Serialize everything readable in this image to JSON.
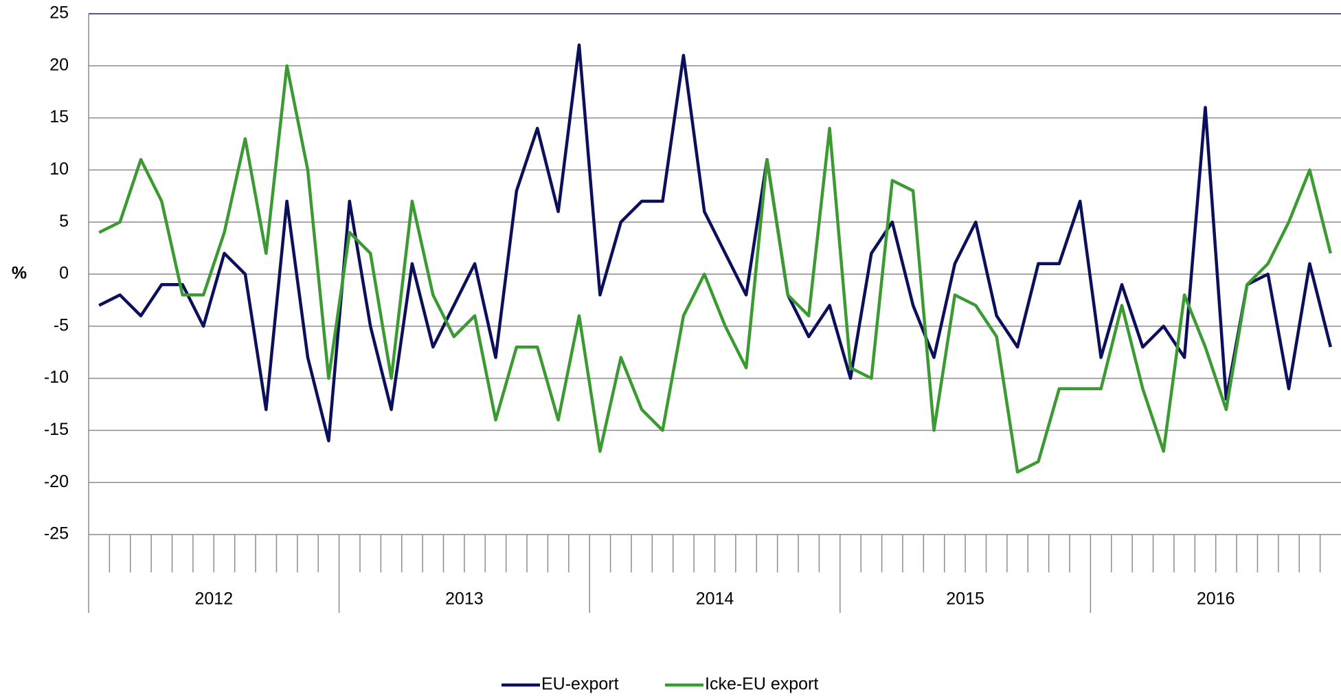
{
  "chart_data": {
    "type": "line",
    "y_label": "%",
    "categories": [
      null,
      null,
      null,
      null,
      null,
      null,
      null,
      null,
      null,
      null,
      null,
      null,
      null,
      null,
      null,
      null,
      null,
      null,
      null,
      null,
      null,
      null,
      null,
      null,
      null,
      null,
      null,
      null,
      null,
      null,
      null,
      null,
      null,
      null,
      null,
      null,
      null,
      null,
      null,
      null,
      null,
      null,
      null,
      null,
      null,
      null,
      null,
      null,
      null,
      null,
      null,
      null,
      null,
      null,
      null,
      null,
      null,
      null,
      null,
      null
    ],
    "year_labels": [
      "2012",
      "2013",
      "2014",
      "2015",
      "2016"
    ],
    "series": [
      {
        "name": "EU-export",
        "color": "#0c0f5a",
        "values": [
          -3,
          -2,
          -4,
          -1,
          -1,
          -5,
          2,
          0,
          -13,
          7,
          -8,
          -16,
          7,
          -5,
          -13,
          1,
          -7,
          -3,
          1,
          -8,
          8,
          14,
          6,
          22,
          -2,
          5,
          7,
          7,
          21,
          6,
          2,
          -2,
          11,
          -2,
          -6,
          -3,
          -10,
          2,
          5,
          -3,
          -8,
          1,
          5,
          -4,
          -7,
          1,
          1,
          7,
          -8,
          -1,
          -7,
          -5,
          -8,
          16,
          -12,
          -1,
          0,
          -11,
          1,
          -7
        ]
      },
      {
        "name": "Icke-EU export",
        "color": "#3c9a32",
        "values": [
          4,
          5,
          11,
          7,
          -2,
          -2,
          4,
          13,
          2,
          20,
          10,
          -10,
          4,
          2,
          -10,
          7,
          -2,
          -6,
          -4,
          -14,
          -7,
          -7,
          -14,
          -4,
          -17,
          -8,
          -13,
          -15,
          -4,
          0,
          -5,
          -9,
          11,
          -2,
          -4,
          14,
          -9,
          -10,
          9,
          8,
          -15,
          -2,
          -3,
          -6,
          -19,
          -18,
          -11,
          -11,
          -11,
          -3,
          -11,
          -17,
          -2,
          -7,
          -13,
          -1,
          1,
          5,
          10,
          2
        ]
      }
    ],
    "ylim": [
      -25,
      25
    ],
    "yticks": [
      -25,
      -20,
      -15,
      -10,
      -5,
      0,
      5,
      10,
      15,
      20,
      25
    ],
    "grid": true
  }
}
